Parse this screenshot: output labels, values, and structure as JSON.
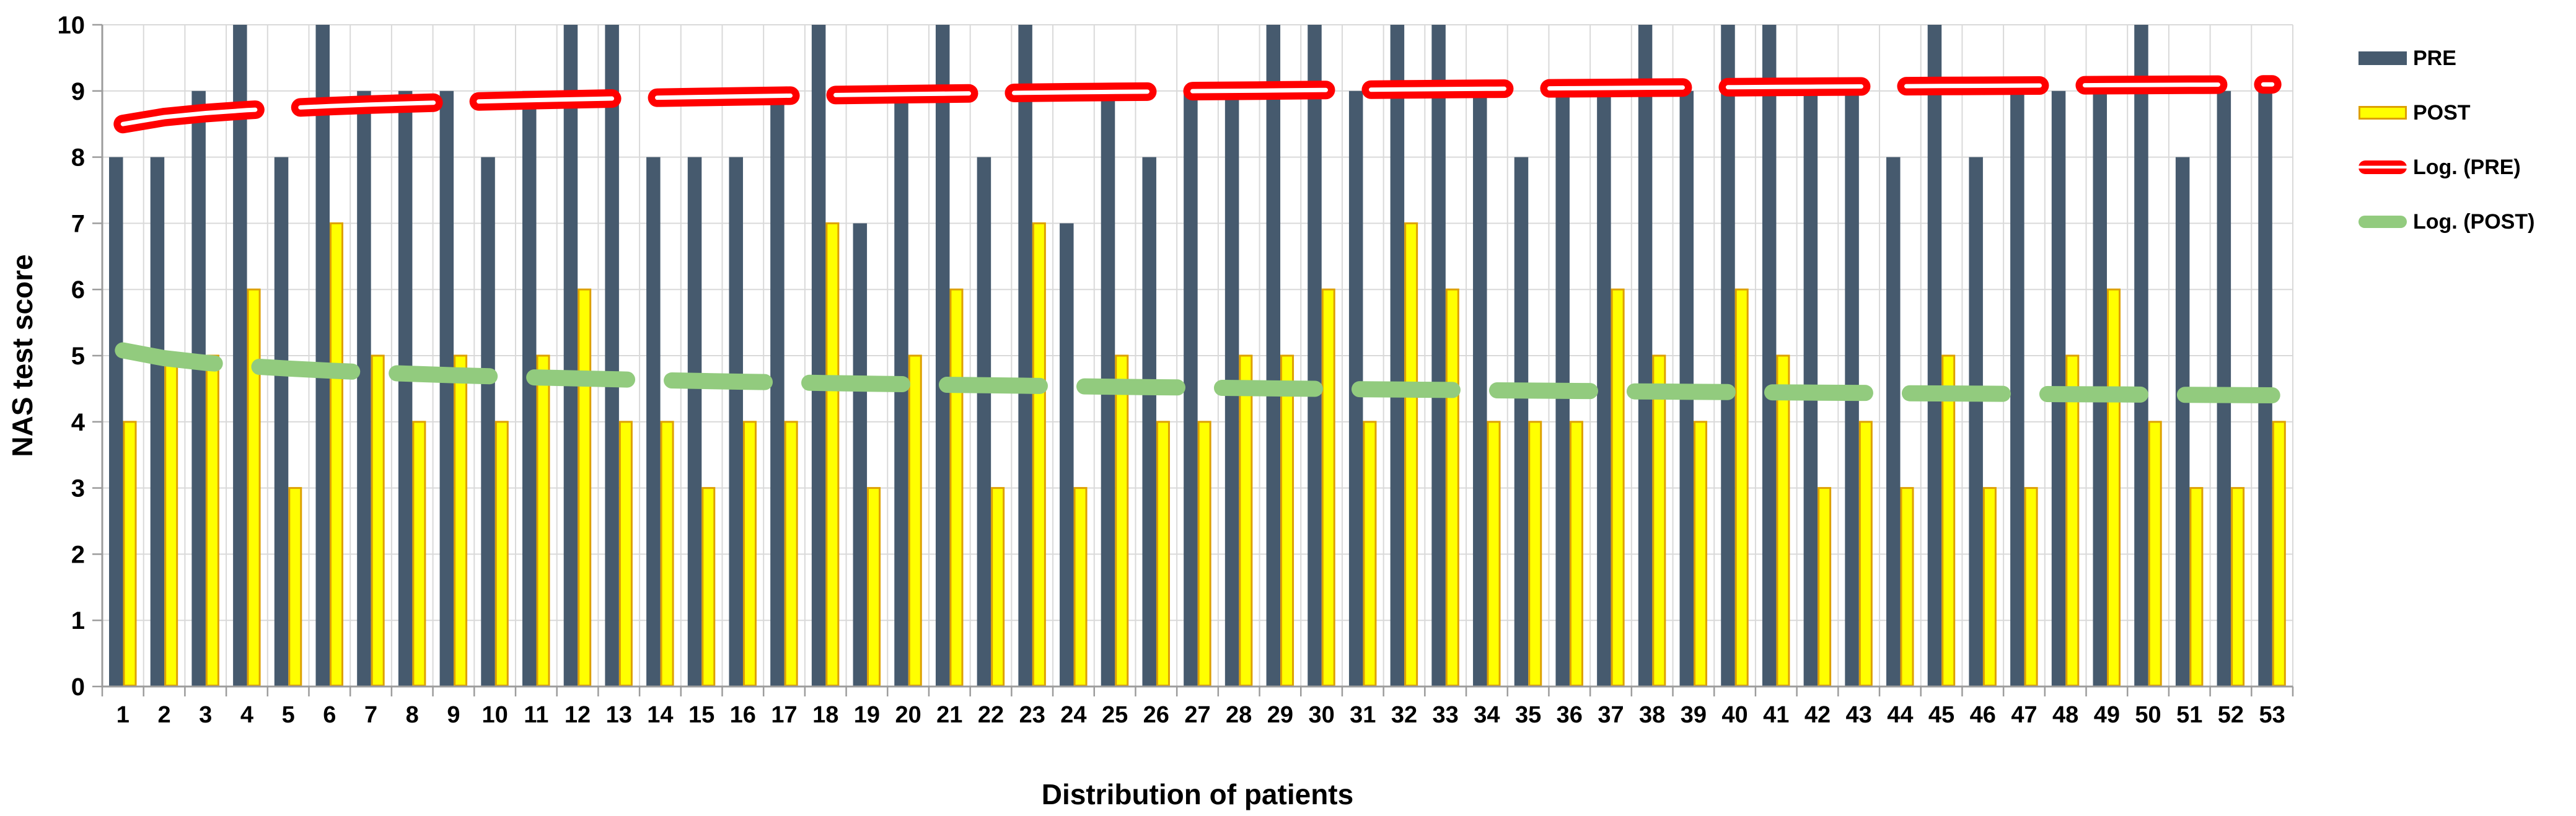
{
  "chart_data": {
    "type": "bar",
    "title": "",
    "xlabel": "Distribution of patients",
    "ylabel": "NAS test score",
    "ylim": [
      0,
      10
    ],
    "y_ticks": [
      0,
      1,
      2,
      3,
      4,
      5,
      6,
      7,
      8,
      9,
      10
    ],
    "grid": true,
    "legend_position": "right",
    "categories": [
      1,
      2,
      3,
      4,
      5,
      6,
      7,
      8,
      9,
      10,
      11,
      12,
      13,
      14,
      15,
      16,
      17,
      18,
      19,
      20,
      21,
      22,
      23,
      24,
      25,
      26,
      27,
      28,
      29,
      30,
      31,
      32,
      33,
      34,
      35,
      36,
      37,
      38,
      39,
      40,
      41,
      42,
      43,
      44,
      45,
      46,
      47,
      48,
      49,
      50,
      51,
      52,
      53
    ],
    "series": [
      {
        "name": "PRE",
        "color": "#465A6E",
        "values": [
          8,
          8,
          9,
          10,
          8,
          10,
          9,
          9,
          9,
          8,
          9,
          10,
          10,
          8,
          8,
          8,
          9,
          10,
          7,
          9,
          10,
          8,
          10,
          7,
          9,
          8,
          9,
          9,
          10,
          10,
          9,
          10,
          10,
          9,
          8,
          9,
          9,
          10,
          9,
          10,
          10,
          9,
          9,
          8,
          10,
          8,
          9,
          9,
          9,
          10,
          8,
          9,
          9
        ]
      },
      {
        "name": "POST",
        "color": "#FFFF00",
        "border_color": "#DDA001",
        "values": [
          4,
          5,
          5,
          6,
          3,
          7,
          5,
          4,
          5,
          4,
          5,
          6,
          4,
          4,
          3,
          4,
          4,
          7,
          3,
          5,
          6,
          3,
          7,
          3,
          5,
          4,
          4,
          5,
          5,
          6,
          4,
          7,
          6,
          4,
          4,
          4,
          6,
          5,
          4,
          6,
          5,
          3,
          4,
          3,
          5,
          3,
          3,
          5,
          6,
          4,
          3,
          3,
          4
        ]
      }
    ],
    "trendlines": [
      {
        "name": "Log. (PRE)",
        "fit": "logarithmic",
        "color": "#FF0000",
        "inner_stripe_color": "#FFFFFF",
        "a": 8.5,
        "b": 0.151,
        "start_value": 8.5,
        "end_value": 9.1
      },
      {
        "name": "Log. (POST)",
        "fit": "logarithmic",
        "color": "#92CB7E",
        "a": 5.08,
        "b": -0.171,
        "start_value": 5.08,
        "end_value": 4.4
      }
    ]
  },
  "axes": {
    "y_title": "NAS test score",
    "x_title": "Distribution of patients"
  },
  "legend": {
    "items": [
      {
        "label": "PRE"
      },
      {
        "label": "POST"
      },
      {
        "label": "Log. (PRE)"
      },
      {
        "label": "Log. (POST)"
      }
    ]
  },
  "colors": {
    "grid": "#D9D9D9",
    "axis": "#9C9C9C",
    "text": "#000000",
    "background": "#FFFFFF"
  }
}
